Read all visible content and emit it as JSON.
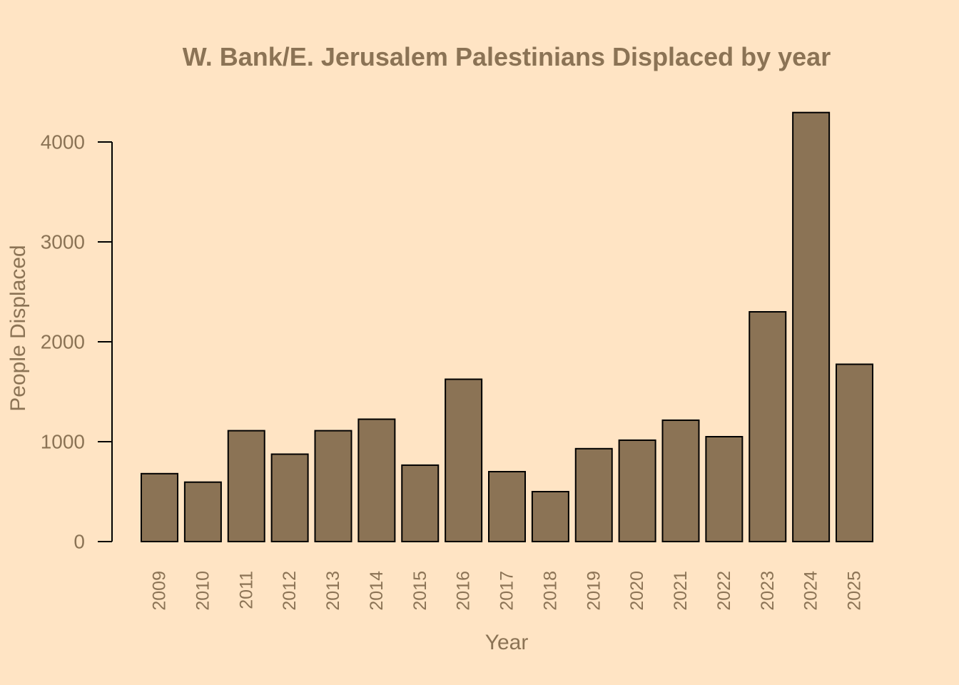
{
  "colors": {
    "background": "#FFE4C4",
    "bar_fill": "#8B7355",
    "bar_stroke": "#000000",
    "text": "#8B7355",
    "axis": "#000000"
  },
  "chart_data": {
    "type": "bar",
    "title": "W. Bank/E. Jerusalem Palestinians Displaced by year",
    "xlabel": "Year",
    "ylabel": "People Displaced",
    "categories": [
      "2009",
      "2010",
      "2011",
      "2012",
      "2013",
      "2014",
      "2015",
      "2016",
      "2017",
      "2018",
      "2019",
      "2020",
      "2021",
      "2022",
      "2023",
      "2024",
      "2025"
    ],
    "values": [
      680,
      595,
      1110,
      875,
      1110,
      1225,
      765,
      1625,
      700,
      500,
      930,
      1015,
      1215,
      1050,
      2300,
      4295,
      1775
    ],
    "ylim": [
      0,
      4000
    ],
    "yticks": [
      "0",
      "1000",
      "2000",
      "3000",
      "4000"
    ],
    "grid": false,
    "legend": "none"
  }
}
